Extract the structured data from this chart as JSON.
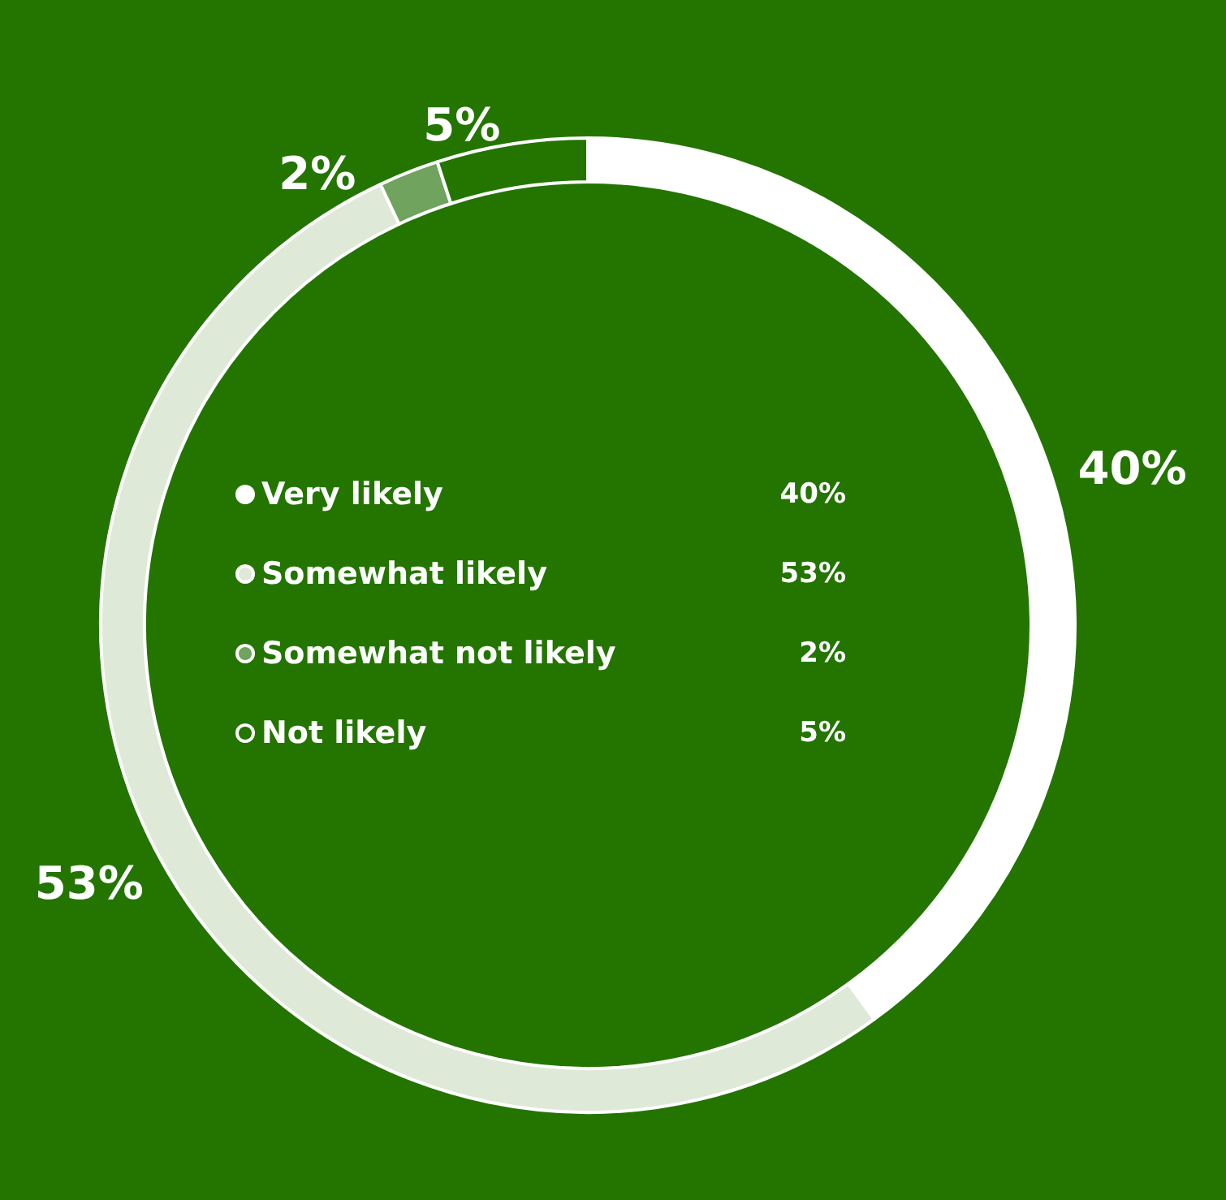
{
  "chart_data": {
    "type": "donut",
    "categories": [
      "Very likely",
      "Somewhat likely",
      "Somewhat not likely",
      "Not likely"
    ],
    "values": [
      40,
      53,
      2,
      5
    ],
    "value_labels": [
      "40%",
      "53%",
      "2%",
      "5%"
    ],
    "colors": [
      "#ffffff",
      "#dfe9d8",
      "#6fa35e",
      "#237500"
    ],
    "legend": "center"
  }
}
